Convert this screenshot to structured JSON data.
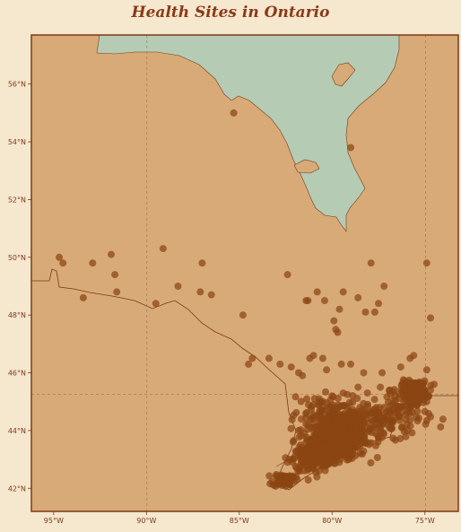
{
  "title": "Health Sites in Ontario",
  "colors": {
    "background": "#f6e7cf",
    "land": "#d8aa78",
    "water": "#b5cbb4",
    "frame": "#7a3a16",
    "border": "#7a3a16",
    "marker": "#8b4513",
    "text": "#8b3a17"
  },
  "chart_data": {
    "type": "scatter",
    "projection": "lon-lat",
    "xlim": [
      -96.2,
      -73.2
    ],
    "ylim": [
      41.2,
      57.7
    ],
    "x_ticks": [
      {
        "value": -95,
        "label": "95°W"
      },
      {
        "value": -90,
        "label": "90°W"
      },
      {
        "value": -85,
        "label": "85°W"
      },
      {
        "value": -80,
        "label": "80°W"
      },
      {
        "value": -75,
        "label": "75°W"
      }
    ],
    "y_ticks": [
      {
        "value": 42,
        "label": "42°N"
      },
      {
        "value": 44,
        "label": "44°N"
      },
      {
        "value": 46,
        "label": "46°N"
      },
      {
        "value": 48,
        "label": "48°N"
      },
      {
        "value": 50,
        "label": "50°N"
      },
      {
        "value": 52,
        "label": "52°N"
      },
      {
        "value": 54,
        "label": "54°N"
      },
      {
        "value": 56,
        "label": "56°N"
      }
    ],
    "grid_lines": {
      "lon": [
        -90,
        -75
      ],
      "lat": [
        45
      ],
      "style": "dashed"
    },
    "points": [
      [
        -85.3,
        55.0
      ],
      [
        -79.0,
        53.8
      ],
      [
        -94.7,
        50.0
      ],
      [
        -94.5,
        49.8
      ],
      [
        -92.9,
        49.8
      ],
      [
        -91.9,
        50.1
      ],
      [
        -91.7,
        49.4
      ],
      [
        -91.6,
        48.8
      ],
      [
        -89.1,
        50.3
      ],
      [
        -88.3,
        49.0
      ],
      [
        -87.0,
        49.8
      ],
      [
        -87.1,
        48.8
      ],
      [
        -86.5,
        48.7
      ],
      [
        -89.5,
        48.4
      ],
      [
        -93.4,
        48.6
      ],
      [
        -84.8,
        48.0
      ],
      [
        -82.4,
        49.4
      ],
      [
        -77.9,
        49.8
      ],
      [
        -74.9,
        49.8
      ],
      [
        -74.7,
        47.9
      ],
      [
        -80.8,
        48.8
      ],
      [
        -81.4,
        48.5
      ],
      [
        -81.3,
        48.5
      ],
      [
        -80.4,
        48.5
      ],
      [
        -79.4,
        48.8
      ],
      [
        -78.6,
        48.6
      ],
      [
        -79.6,
        48.2
      ],
      [
        -78.2,
        48.1
      ],
      [
        -77.7,
        48.1
      ],
      [
        -77.5,
        48.4
      ],
      [
        -77.2,
        49.0
      ],
      [
        -79.9,
        47.8
      ],
      [
        -79.8,
        47.5
      ],
      [
        -79.7,
        47.4
      ],
      [
        -80.5,
        46.5
      ],
      [
        -81.0,
        46.6
      ],
      [
        -81.2,
        46.5
      ],
      [
        -83.4,
        46.5
      ],
      [
        -84.3,
        46.5
      ],
      [
        -84.5,
        46.3
      ],
      [
        -82.8,
        46.3
      ],
      [
        -82.2,
        46.2
      ],
      [
        -81.8,
        46.0
      ],
      [
        -81.6,
        45.9
      ],
      [
        -80.3,
        46.1
      ],
      [
        -79.5,
        46.3
      ],
      [
        -79.0,
        46.3
      ],
      [
        -78.3,
        46.0
      ],
      [
        -77.3,
        46.0
      ],
      [
        -76.3,
        46.2
      ],
      [
        -75.8,
        46.5
      ],
      [
        -75.6,
        46.6
      ],
      [
        -74.9,
        46.1
      ],
      [
        -81.0,
        44.9
      ],
      [
        -80.7,
        45.1
      ],
      [
        -80.0,
        45.2
      ],
      [
        -79.4,
        45.3
      ],
      [
        -78.6,
        45.5
      ],
      [
        -78.1,
        45.3
      ],
      [
        -77.4,
        45.5
      ],
      [
        -76.9,
        45.4
      ],
      [
        -76.6,
        45.2
      ],
      [
        -76.2,
        45.6
      ],
      [
        -75.8,
        45.4
      ],
      [
        -75.6,
        45.3
      ],
      [
        -75.5,
        45.5
      ],
      [
        -75.3,
        45.4
      ],
      [
        -75.1,
        45.6
      ],
      [
        -75.0,
        45.3
      ],
      [
        -74.8,
        45.2
      ],
      [
        -74.7,
        45.4
      ],
      [
        -74.5,
        45.6
      ],
      [
        -74.9,
        45.0
      ],
      [
        -75.7,
        44.9
      ],
      [
        -76.1,
        44.7
      ],
      [
        -76.4,
        44.5
      ],
      [
        -76.9,
        44.3
      ],
      [
        -77.3,
        44.2
      ],
      [
        -77.6,
        44.1
      ],
      [
        -78.0,
        44.0
      ],
      [
        -78.3,
        44.3
      ],
      [
        -78.7,
        44.2
      ],
      [
        -79.0,
        44.0
      ],
      [
        -79.2,
        43.9
      ],
      [
        -79.3,
        43.7
      ],
      [
        -79.4,
        43.8
      ],
      [
        -79.5,
        43.6
      ],
      [
        -79.6,
        43.7
      ],
      [
        -79.7,
        43.5
      ],
      [
        -79.8,
        43.4
      ],
      [
        -79.9,
        43.3
      ],
      [
        -80.0,
        43.2
      ],
      [
        -79.7,
        43.1
      ],
      [
        -79.3,
        43.1
      ],
      [
        -79.1,
        43.0
      ],
      [
        -80.2,
        43.5
      ],
      [
        -80.5,
        43.4
      ],
      [
        -80.3,
        43.1
      ],
      [
        -80.1,
        42.9
      ],
      [
        -80.6,
        42.8
      ],
      [
        -81.2,
        43.0
      ],
      [
        -81.6,
        42.9
      ],
      [
        -81.9,
        42.7
      ],
      [
        -82.1,
        42.4
      ],
      [
        -82.5,
        42.3
      ],
      [
        -82.9,
        42.2
      ],
      [
        -82.7,
        42.1
      ],
      [
        -82.4,
        42.9
      ],
      [
        -82.0,
        43.1
      ],
      [
        -81.7,
        43.5
      ],
      [
        -81.5,
        43.9
      ],
      [
        -81.3,
        44.2
      ],
      [
        -80.9,
        44.5
      ],
      [
        -80.5,
        44.7
      ],
      [
        -80.2,
        44.4
      ],
      [
        -79.9,
        44.1
      ],
      [
        -79.7,
        44.6
      ],
      [
        -79.4,
        44.4
      ],
      [
        -79.1,
        44.6
      ],
      [
        -78.8,
        44.5
      ],
      [
        -78.5,
        44.8
      ],
      [
        -77.8,
        44.7
      ],
      [
        -77.2,
        44.8
      ],
      [
        -76.7,
        44.9
      ],
      [
        -80.8,
        44.0
      ],
      [
        -80.4,
        43.9
      ],
      [
        -80.1,
        43.8
      ],
      [
        -79.8,
        43.9
      ],
      [
        -80.9,
        43.4
      ],
      [
        -81.4,
        43.6
      ],
      [
        -81.0,
        43.8
      ],
      [
        -80.6,
        44.2
      ],
      [
        -81.8,
        44.0
      ],
      [
        -82.1,
        43.6
      ],
      [
        -82.3,
        43.0
      ],
      [
        -81.5,
        42.6
      ],
      [
        -81.0,
        42.7
      ],
      [
        -80.7,
        42.6
      ],
      [
        -80.3,
        42.8
      ],
      [
        -79.6,
        42.9
      ],
      [
        -79.9,
        43.0
      ]
    ],
    "clusters": [
      {
        "lon": -79.6,
        "lat": 43.7,
        "n": 420,
        "spread_lon": 0.75,
        "spread_lat": 0.32
      },
      {
        "lon": -80.5,
        "lat": 43.4,
        "n": 160,
        "spread_lon": 0.55,
        "spread_lat": 0.25
      },
      {
        "lon": -81.2,
        "lat": 43.0,
        "n": 110,
        "spread_lon": 0.45,
        "spread_lat": 0.25
      },
      {
        "lon": -82.6,
        "lat": 42.3,
        "n": 60,
        "spread_lon": 0.3,
        "spread_lat": 0.12
      },
      {
        "lon": -80.8,
        "lat": 44.4,
        "n": 70,
        "spread_lon": 0.7,
        "spread_lat": 0.4
      },
      {
        "lon": -79.6,
        "lat": 44.5,
        "n": 60,
        "spread_lon": 0.5,
        "spread_lat": 0.35
      },
      {
        "lon": -75.6,
        "lat": 45.35,
        "n": 200,
        "spread_lon": 0.35,
        "spread_lat": 0.18
      },
      {
        "lon": -76.5,
        "lat": 44.5,
        "n": 90,
        "spread_lon": 0.9,
        "spread_lat": 0.35
      },
      {
        "lon": -78.4,
        "lat": 44.3,
        "n": 90,
        "spread_lon": 0.6,
        "spread_lat": 0.3
      }
    ]
  }
}
